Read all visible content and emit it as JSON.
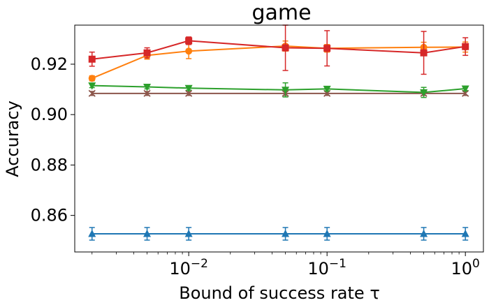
{
  "chart_data": {
    "type": "line",
    "title": "game",
    "xlabel": "Bound of success rate τ",
    "ylabel": "Accuracy",
    "xscale": "log",
    "xlim": [
      0.0015,
      1.35
    ],
    "ylim": [
      0.8455,
      0.9355
    ],
    "x": [
      0.002,
      0.005,
      0.01,
      0.05,
      0.1,
      0.5,
      1.0
    ],
    "xticks": [
      {
        "value": 0.01,
        "base": "10",
        "exp": "−2"
      },
      {
        "value": 0.1,
        "base": "10",
        "exp": "−1"
      },
      {
        "value": 1.0,
        "base": "10",
        "exp": "0"
      }
    ],
    "yticks": [
      {
        "value": 0.86,
        "label": "0.86"
      },
      {
        "value": 0.88,
        "label": "0.88"
      },
      {
        "value": 0.9,
        "label": "0.90"
      },
      {
        "value": 0.92,
        "label": "0.92"
      }
    ],
    "grid": false,
    "series": [
      {
        "color": "#1f77b4",
        "marker": "triangle-up",
        "values": [
          0.8527,
          0.8527,
          0.8527,
          0.8527,
          0.8527,
          0.8527,
          0.8527
        ],
        "err": [
          0.0025,
          0.0025,
          0.0025,
          0.0025,
          0.0025,
          0.0025,
          0.0025
        ]
      },
      {
        "color": "#8c564b",
        "marker": "x",
        "values": [
          0.9084,
          0.9084,
          0.9084,
          0.9084,
          0.9084,
          0.9084,
          0.9084
        ],
        "err": [
          0.0008,
          0.0008,
          0.0008,
          0.0008,
          0.0008,
          0.0008,
          0.0008
        ]
      },
      {
        "color": "#2ca02c",
        "marker": "triangle-down",
        "values": [
          0.9115,
          0.911,
          0.9105,
          0.9098,
          0.9102,
          0.9088,
          0.9103
        ],
        "err": [
          0.0008,
          0.0008,
          0.0008,
          0.0028,
          0.0008,
          0.002,
          0.0008
        ]
      },
      {
        "color": "#ff7f0e",
        "marker": "circle",
        "values": [
          0.9144,
          0.9235,
          0.9252,
          0.9272,
          0.9263,
          0.9267,
          0.9268
        ],
        "err": [
          0.001,
          0.0015,
          0.003,
          0.002,
          0.0015,
          0.002,
          0.002
        ]
      },
      {
        "color": "#d62728",
        "marker": "square",
        "values": [
          0.922,
          0.9245,
          0.9293,
          0.9265,
          0.9263,
          0.9245,
          0.927
        ],
        "err": [
          0.0028,
          0.002,
          0.0015,
          0.009,
          0.007,
          0.0085,
          0.0035
        ]
      }
    ]
  }
}
